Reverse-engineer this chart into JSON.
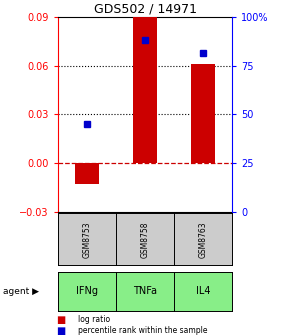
{
  "title": "GDS502 / 14971",
  "categories": [
    "IFNg",
    "TNFa",
    "IL4"
  ],
  "gsm_labels": [
    "GSM8753",
    "GSM8758",
    "GSM8763"
  ],
  "log_ratios": [
    -0.013,
    0.091,
    0.061
  ],
  "percentile_ranks": [
    0.45,
    0.88,
    0.815
  ],
  "left_ylim": [
    -0.03,
    0.09
  ],
  "left_yticks": [
    -0.03,
    0,
    0.03,
    0.06,
    0.09
  ],
  "right_ylim": [
    0,
    1.0
  ],
  "right_yticks": [
    0,
    0.25,
    0.5,
    0.75,
    1.0
  ],
  "right_yticklabels": [
    "0",
    "25",
    "50",
    "75",
    "100%"
  ],
  "bar_color": "#cc0000",
  "dot_color": "#0000cc",
  "dotted_lines": [
    0.03,
    0.06
  ],
  "zero_line": 0.0,
  "gsm_color": "#cccccc",
  "agent_color": "#88ee88",
  "bar_width": 0.4,
  "legend_bar_label": "log ratio",
  "legend_dot_label": "percentile rank within the sample"
}
